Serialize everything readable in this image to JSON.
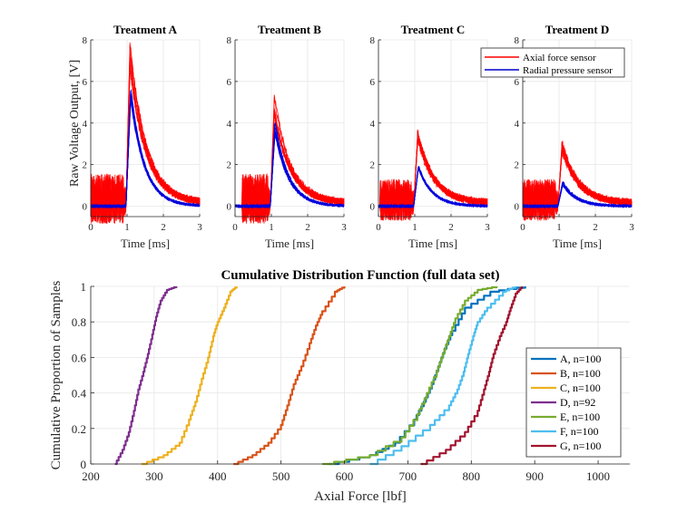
{
  "top_panels": {
    "ylabel": "Raw Voltage Output, [V]",
    "xlabel": "Time [ms]",
    "xticks": [
      "0",
      "1",
      "2",
      "3"
    ],
    "yticks": [
      "0",
      "2",
      "4",
      "6",
      "8"
    ],
    "xlim": [
      0,
      3
    ],
    "ylim": [
      -0.5,
      8
    ],
    "legend": {
      "entries": [
        "Axial force sensor",
        "Radial pressure sensor"
      ],
      "colors": [
        "#ff0000",
        "#0000cc"
      ]
    },
    "panels": [
      {
        "title": "Treatment A",
        "axial_peak": 7.7,
        "radial_peak": 6.0,
        "noise": 1.2,
        "noise_start": 0.0,
        "noise_end": 0.97
      },
      {
        "title": "Treatment B",
        "axial_peak": 5.2,
        "radial_peak": 4.1,
        "noise": 1.2,
        "noise_start": 0.2,
        "noise_end": 0.97
      },
      {
        "title": "Treatment C",
        "axial_peak": 3.6,
        "radial_peak": 2.1,
        "noise": 1.0,
        "noise_start": 0.05,
        "noise_end": 0.97
      },
      {
        "title": "Treatment D",
        "axial_peak": 3.0,
        "radial_peak": 1.2,
        "noise": 1.0,
        "noise_start": 0.0,
        "noise_end": 0.97
      }
    ]
  },
  "chart_data": {
    "type": "line",
    "title": "Cumulative Distribution Function (full data set)",
    "xlabel": "Axial Force [lbf]",
    "ylabel": "Cumulative Proportion of Samples",
    "xlim": [
      200,
      1050
    ],
    "ylim": [
      0,
      1
    ],
    "xticks": [
      "200",
      "300",
      "400",
      "500",
      "600",
      "700",
      "800",
      "900",
      "1000"
    ],
    "yticks": [
      "0",
      "0.2",
      "0.4",
      "0.6",
      "0.8",
      "1"
    ],
    "grid": true,
    "legend_position": "bottom-right",
    "series": [
      {
        "name": "A, n=100",
        "color": "#0072BD",
        "x": [
          575,
          640,
          680,
          710,
          725,
          738,
          748,
          758,
          770,
          790,
          830,
          885
        ],
        "y": [
          0,
          0.05,
          0.12,
          0.25,
          0.35,
          0.45,
          0.55,
          0.65,
          0.75,
          0.88,
          0.97,
          1
        ]
      },
      {
        "name": "B, n=100",
        "color": "#D95319",
        "x": [
          425,
          455,
          480,
          500,
          510,
          520,
          532,
          545,
          555,
          565,
          585,
          600
        ],
        "y": [
          0,
          0.05,
          0.12,
          0.22,
          0.33,
          0.45,
          0.55,
          0.68,
          0.78,
          0.86,
          0.97,
          1
        ]
      },
      {
        "name": "C, n=100",
        "color": "#EDB120",
        "x": [
          280,
          315,
          340,
          355,
          365,
          375,
          385,
          393,
          400,
          410,
          420,
          430
        ],
        "y": [
          0,
          0.05,
          0.12,
          0.25,
          0.35,
          0.48,
          0.6,
          0.72,
          0.8,
          0.88,
          0.97,
          1
        ]
      },
      {
        "name": "D, n=92",
        "color": "#7E2F8E",
        "x": [
          238,
          250,
          260,
          268,
          275,
          283,
          290,
          297,
          303,
          310,
          320,
          335
        ],
        "y": [
          0,
          0.08,
          0.18,
          0.3,
          0.42,
          0.52,
          0.62,
          0.73,
          0.83,
          0.92,
          0.98,
          1
        ]
      },
      {
        "name": "E, n=100",
        "color": "#77AC30",
        "x": [
          565,
          640,
          690,
          715,
          730,
          745,
          755,
          765,
          775,
          790,
          810,
          840
        ],
        "y": [
          0,
          0.05,
          0.15,
          0.28,
          0.4,
          0.52,
          0.62,
          0.72,
          0.82,
          0.92,
          0.98,
          1
        ]
      },
      {
        "name": "F, n=100",
        "color": "#4DBEEE",
        "x": [
          640,
          690,
          735,
          765,
          778,
          788,
          795,
          803,
          810,
          825,
          850,
          870
        ],
        "y": [
          0,
          0.1,
          0.22,
          0.33,
          0.42,
          0.52,
          0.62,
          0.72,
          0.8,
          0.88,
          0.97,
          1
        ]
      },
      {
        "name": "G, n=100",
        "color": "#A2142F",
        "x": [
          720,
          760,
          790,
          810,
          820,
          828,
          835,
          845,
          855,
          862,
          870,
          880
        ],
        "y": [
          0,
          0.08,
          0.18,
          0.3,
          0.42,
          0.52,
          0.62,
          0.72,
          0.8,
          0.88,
          0.96,
          1
        ]
      }
    ]
  }
}
